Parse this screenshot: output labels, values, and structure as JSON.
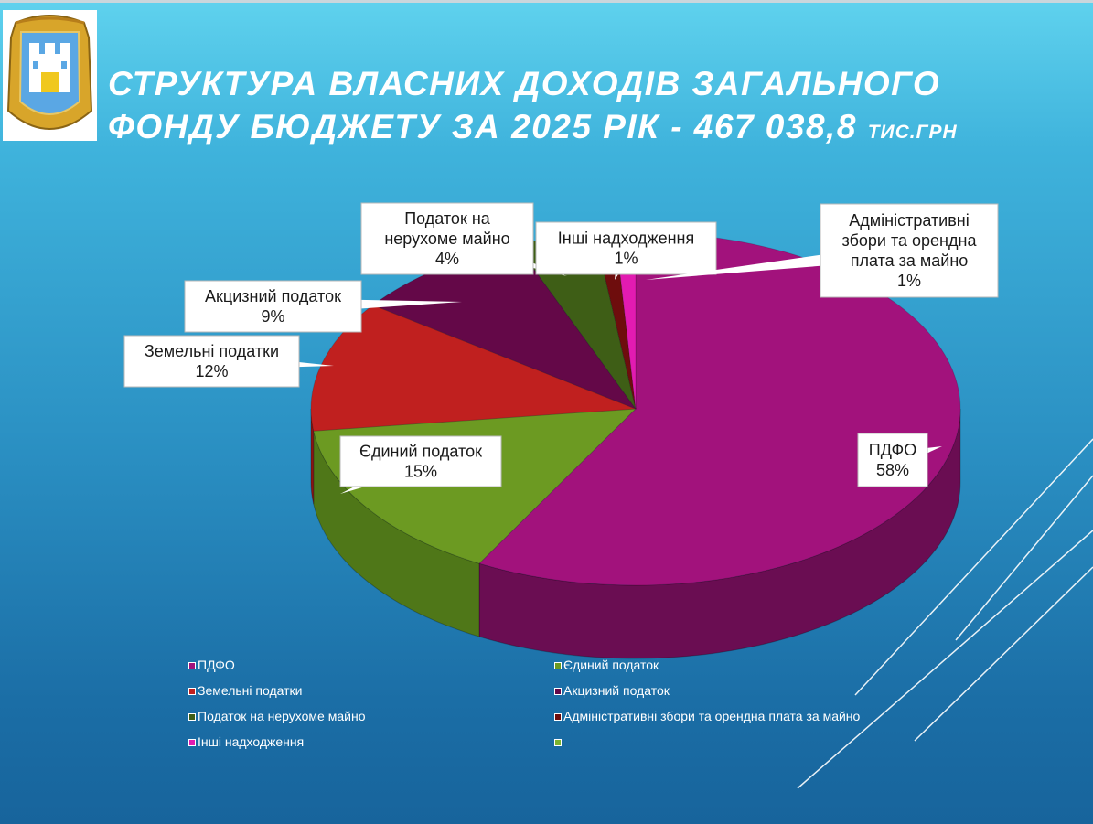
{
  "slide": {
    "title_main": "Структура власних доходів загального фонду бюджету за 2025 рік - 467 038,8",
    "title_unit": "тис.грн"
  },
  "chart_data": {
    "type": "pie",
    "title": "Структура власних доходів загального фонду бюджету за 2025 рік - 467 038,8 тис.грн",
    "unit": "%",
    "slices": [
      {
        "name": "ПДФО",
        "value": 58,
        "label_pct": "58%",
        "color": "#a2127c",
        "dark": "#6a0d52"
      },
      {
        "name": "Єдиний податок",
        "value": 15,
        "label_pct": "15%",
        "color": "#6c9a22",
        "dark": "#4f7718"
      },
      {
        "name": "Земельні податки",
        "value": 12,
        "label_pct": "12%",
        "color": "#c0201f",
        "dark": "#8a1414"
      },
      {
        "name": "Акцизний податок",
        "value": 9,
        "label_pct": "9%",
        "color": "#640848",
        "dark": "#45052f"
      },
      {
        "name": "Податок на нерухоме майно",
        "value": 4,
        "label_pct": "4%",
        "color": "#3e5e16",
        "dark": "#2b4110"
      },
      {
        "name": "Інші  надходження",
        "value": 1,
        "label_pct": "1%",
        "color": "#6e0d0d",
        "dark": "#4a0808"
      },
      {
        "name": "Адміністративні збори та орендна плата за майно",
        "value": 1,
        "label_pct": "1%",
        "color": "#e21bb1",
        "dark": "#9b1278"
      }
    ],
    "callouts": [
      {
        "lines": [
          "ПДФО",
          "58%"
        ]
      },
      {
        "lines": [
          "Єдиний податок",
          "15%"
        ]
      },
      {
        "lines": [
          "Земельні податки",
          "12%"
        ]
      },
      {
        "lines": [
          "Акцизний податок",
          "9%"
        ]
      },
      {
        "lines": [
          "Податок на",
          "нерухоме майно",
          "4%"
        ]
      },
      {
        "lines": [
          "Інші  надходження",
          "1%"
        ]
      },
      {
        "lines": [
          "Адміністративні",
          "збори та орендна",
          "плата за майно",
          "1%"
        ]
      }
    ],
    "legend": [
      {
        "label": "ПДФО",
        "color": "#a2127c"
      },
      {
        "label": "Єдиний податок",
        "color": "#6c9a22"
      },
      {
        "label": "Земельні податки",
        "color": "#c0201f"
      },
      {
        "label": "Акцизний податок",
        "color": "#640848"
      },
      {
        "label": "Податок на нерухоме майно",
        "color": "#3e5e16"
      },
      {
        "label": "Адміністративні збори та орендна плата за майно",
        "color": "#6e0d0d"
      },
      {
        "label": "Інші  надходження",
        "color": "#e21bb1"
      },
      {
        "label": "",
        "color": "#7bb32e"
      }
    ],
    "legend_position": "bottom"
  }
}
